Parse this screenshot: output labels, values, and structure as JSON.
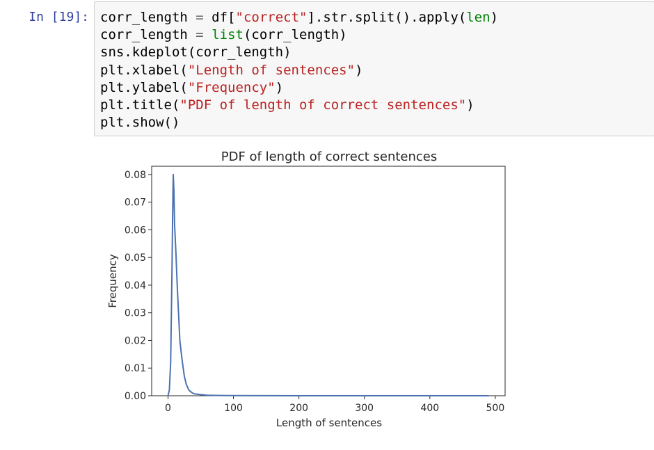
{
  "cell": {
    "prompt": "In [19]:",
    "code_lines": [
      [
        {
          "t": "corr_length "
        },
        {
          "t": "=",
          "c": "op"
        },
        {
          "t": " df["
        },
        {
          "t": "\"correct\"",
          "c": "str"
        },
        {
          "t": "].str.split().apply("
        },
        {
          "t": "len",
          "c": "builtin"
        },
        {
          "t": ")"
        }
      ],
      [
        {
          "t": "corr_length "
        },
        {
          "t": "=",
          "c": "op"
        },
        {
          "t": " "
        },
        {
          "t": "list",
          "c": "builtin"
        },
        {
          "t": "(corr_length)"
        }
      ],
      [
        {
          "t": "sns.kdeplot(corr_length)"
        }
      ],
      [
        {
          "t": "plt.xlabel("
        },
        {
          "t": "\"Length of sentences\"",
          "c": "str"
        },
        {
          "t": ")"
        }
      ],
      [
        {
          "t": "plt.ylabel("
        },
        {
          "t": "\"Frequency\"",
          "c": "str"
        },
        {
          "t": ")"
        }
      ],
      [
        {
          "t": "plt.title("
        },
        {
          "t": "\"PDF of length of correct sentences\"",
          "c": "str"
        },
        {
          "t": ")"
        }
      ],
      [
        {
          "t": "plt.show()"
        }
      ]
    ]
  },
  "chart_data": {
    "type": "line",
    "title": "PDF of length of correct sentences",
    "xlabel": "Length of sentences",
    "ylabel": "Frequency",
    "xlim": [
      -25,
      515
    ],
    "ylim": [
      0,
      0.083
    ],
    "xticks": [
      0,
      100,
      200,
      300,
      400,
      500
    ],
    "xtick_labels": [
      "0",
      "100",
      "200",
      "300",
      "400",
      "500"
    ],
    "yticks": [
      0,
      0.01,
      0.02,
      0.03,
      0.04,
      0.05,
      0.06,
      0.07,
      0.08
    ],
    "ytick_labels": [
      "0.00",
      "0.01",
      "0.02",
      "0.03",
      "0.04",
      "0.05",
      "0.06",
      "0.07",
      "0.08"
    ],
    "grid": false,
    "series": [
      {
        "color": "#4c72b0",
        "x": [
          0,
          2,
          4,
          6,
          7,
          8,
          9,
          10,
          12,
          14,
          16,
          18,
          20,
          22,
          25,
          28,
          32,
          36,
          40,
          50,
          60,
          80,
          100,
          150,
          200,
          300,
          400,
          490
        ],
        "y": [
          0.0,
          0.002,
          0.012,
          0.045,
          0.065,
          0.08,
          0.074,
          0.062,
          0.052,
          0.04,
          0.03,
          0.02,
          0.016,
          0.012,
          0.007,
          0.004,
          0.002,
          0.0012,
          0.0007,
          0.0004,
          0.0002,
          0.0001,
          5e-05,
          2e-05,
          1e-05,
          5e-06,
          2e-06,
          0.0
        ]
      }
    ]
  }
}
